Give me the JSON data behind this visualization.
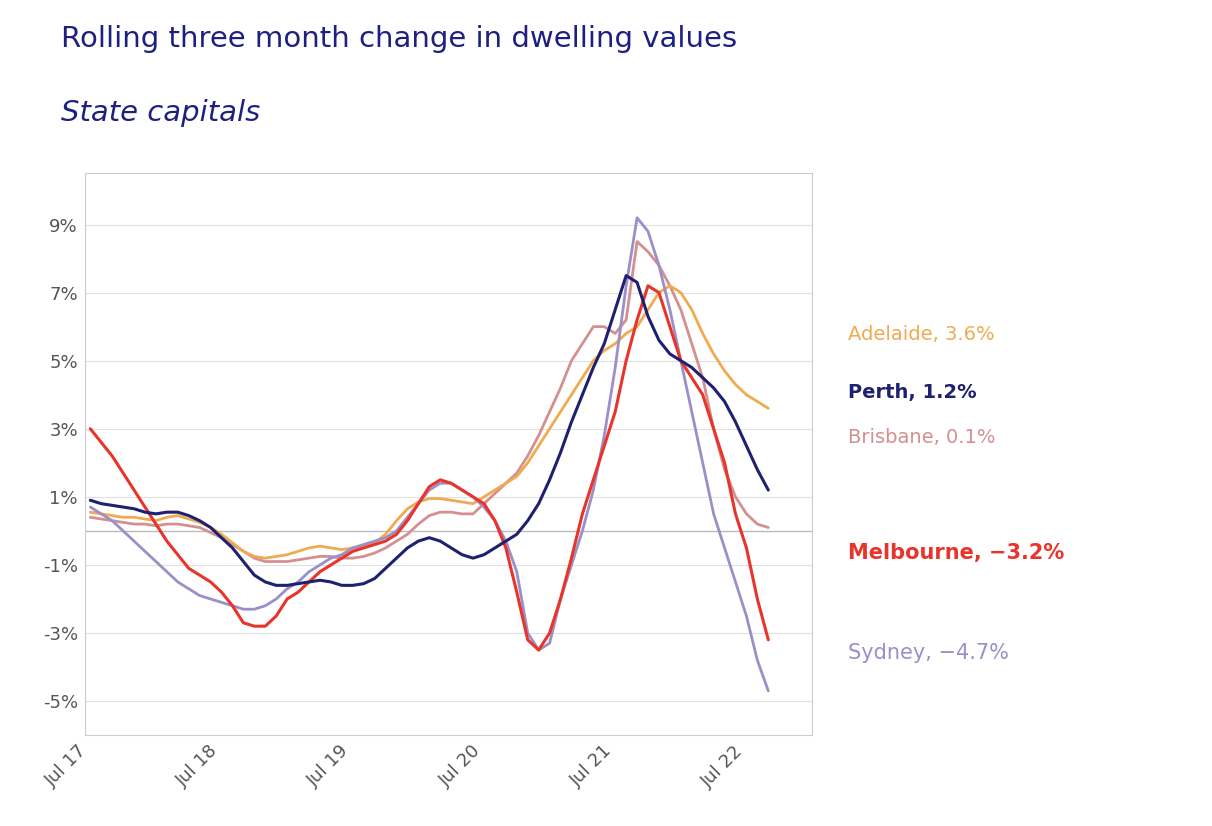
{
  "title_line1": "Rolling three month change in dwelling values",
  "title_line2": "State capitals",
  "title_color": "#1e2080",
  "subtitle_color": "#1e2080",
  "background_color": "#ffffff",
  "plot_bg_color": "#ffffff",
  "x_labels": [
    "Jul 17",
    "Jul 18",
    "Jul 19",
    "Jul 20",
    "Jul 21",
    "Jul 22"
  ],
  "ytick_vals": [
    -5,
    -3,
    -1,
    1,
    3,
    5,
    7,
    9
  ],
  "ylim": [
    -6.0,
    10.5
  ],
  "xlim": [
    -0.5,
    66
  ],
  "series": {
    "Melbourne": {
      "color": "#e8342a",
      "label": "Melbourne, −3.2%",
      "label_color": "#e8342a",
      "linewidth": 2.2,
      "values": [
        3.0,
        2.6,
        2.2,
        1.7,
        1.2,
        0.7,
        0.2,
        -0.3,
        -0.7,
        -1.1,
        -1.3,
        -1.5,
        -1.8,
        -2.2,
        -2.7,
        -2.8,
        -2.8,
        -2.5,
        -2.0,
        -1.8,
        -1.5,
        -1.2,
        -1.0,
        -0.8,
        -0.6,
        -0.5,
        -0.4,
        -0.3,
        -0.1,
        0.3,
        0.8,
        1.3,
        1.5,
        1.4,
        1.2,
        1.0,
        0.8,
        0.3,
        -0.5,
        -1.8,
        -3.2,
        -3.5,
        -3.0,
        -2.0,
        -0.8,
        0.5,
        1.5,
        2.5,
        3.5,
        5.0,
        6.2,
        7.2,
        7.0,
        6.0,
        5.0,
        4.5,
        4.0,
        3.0,
        2.0,
        0.5,
        -0.5,
        -2.0,
        -3.2
      ]
    },
    "Sydney": {
      "color": "#9b8fc8",
      "label": "Sydney, −4.7%",
      "label_color": "#9b8fc8",
      "linewidth": 2.0,
      "values": [
        0.7,
        0.5,
        0.3,
        0.0,
        -0.3,
        -0.6,
        -0.9,
        -1.2,
        -1.5,
        -1.7,
        -1.9,
        -2.0,
        -2.1,
        -2.2,
        -2.3,
        -2.3,
        -2.2,
        -2.0,
        -1.7,
        -1.5,
        -1.2,
        -1.0,
        -0.8,
        -0.7,
        -0.5,
        -0.4,
        -0.3,
        -0.2,
        0.0,
        0.4,
        0.8,
        1.2,
        1.4,
        1.4,
        1.2,
        1.0,
        0.7,
        0.3,
        -0.3,
        -1.2,
        -3.0,
        -3.5,
        -3.3,
        -2.0,
        -1.0,
        0.0,
        1.2,
        2.8,
        4.8,
        7.2,
        9.2,
        8.8,
        7.8,
        6.5,
        5.0,
        3.5,
        2.0,
        0.5,
        -0.5,
        -1.5,
        -2.5,
        -3.8,
        -4.7
      ]
    },
    "Brisbane": {
      "color": "#d49090",
      "label": "Brisbane, 0.1%",
      "label_color": "#d49090",
      "linewidth": 2.0,
      "values": [
        0.4,
        0.35,
        0.3,
        0.25,
        0.2,
        0.2,
        0.15,
        0.2,
        0.2,
        0.15,
        0.1,
        -0.05,
        -0.2,
        -0.4,
        -0.6,
        -0.8,
        -0.9,
        -0.9,
        -0.9,
        -0.85,
        -0.8,
        -0.75,
        -0.75,
        -0.8,
        -0.8,
        -0.75,
        -0.65,
        -0.5,
        -0.3,
        -0.1,
        0.2,
        0.45,
        0.55,
        0.55,
        0.5,
        0.5,
        0.8,
        1.1,
        1.4,
        1.7,
        2.2,
        2.8,
        3.5,
        4.2,
        5.0,
        5.5,
        6.0,
        6.0,
        5.8,
        6.2,
        8.5,
        8.2,
        7.8,
        7.2,
        6.5,
        5.5,
        4.5,
        3.0,
        1.8,
        1.0,
        0.5,
        0.2,
        0.1
      ]
    },
    "Adelaide": {
      "color": "#f0aa50",
      "label": "Adelaide, 3.6%",
      "label_color": "#f0aa50",
      "linewidth": 2.0,
      "values": [
        0.55,
        0.5,
        0.45,
        0.4,
        0.4,
        0.35,
        0.3,
        0.4,
        0.45,
        0.35,
        0.25,
        0.1,
        -0.1,
        -0.35,
        -0.6,
        -0.75,
        -0.8,
        -0.75,
        -0.7,
        -0.6,
        -0.5,
        -0.45,
        -0.5,
        -0.55,
        -0.5,
        -0.45,
        -0.35,
        -0.1,
        0.3,
        0.65,
        0.85,
        0.95,
        0.95,
        0.9,
        0.85,
        0.8,
        1.0,
        1.2,
        1.4,
        1.6,
        2.0,
        2.5,
        3.0,
        3.5,
        4.0,
        4.5,
        5.0,
        5.3,
        5.5,
        5.8,
        6.0,
        6.5,
        7.0,
        7.2,
        7.0,
        6.5,
        5.8,
        5.2,
        4.7,
        4.3,
        4.0,
        3.8,
        3.6
      ]
    },
    "Perth": {
      "color": "#1e2070",
      "label": "Perth, 1.2%",
      "label_color": "#1e2070",
      "linewidth": 2.2,
      "values": [
        0.9,
        0.8,
        0.75,
        0.7,
        0.65,
        0.55,
        0.5,
        0.55,
        0.55,
        0.45,
        0.3,
        0.1,
        -0.2,
        -0.5,
        -0.9,
        -1.3,
        -1.5,
        -1.6,
        -1.6,
        -1.55,
        -1.5,
        -1.45,
        -1.5,
        -1.6,
        -1.6,
        -1.55,
        -1.4,
        -1.1,
        -0.8,
        -0.5,
        -0.3,
        -0.2,
        -0.3,
        -0.5,
        -0.7,
        -0.8,
        -0.7,
        -0.5,
        -0.3,
        -0.1,
        0.3,
        0.8,
        1.5,
        2.3,
        3.2,
        4.0,
        4.8,
        5.5,
        6.5,
        7.5,
        7.3,
        6.3,
        5.6,
        5.2,
        5.0,
        4.8,
        4.5,
        4.2,
        3.8,
        3.2,
        2.5,
        1.8,
        1.2
      ]
    }
  },
  "hline_color": "#bbbbbb",
  "box_color": "#cccccc",
  "font_family": "DejaVu Sans",
  "legend_entries": [
    {
      "key": "Adelaide",
      "fontsize": 14,
      "fontweight": "normal",
      "gap_after": false
    },
    {
      "key": "Perth",
      "fontsize": 14,
      "fontweight": "bold",
      "gap_after": false
    },
    {
      "key": "Brisbane",
      "fontsize": 14,
      "fontweight": "normal",
      "gap_after": true
    },
    {
      "key": "Melbourne",
      "fontsize": 15,
      "fontweight": "bold",
      "gap_after": true
    },
    {
      "key": "Sydney",
      "fontsize": 15,
      "fontweight": "normal",
      "gap_after": false
    }
  ]
}
